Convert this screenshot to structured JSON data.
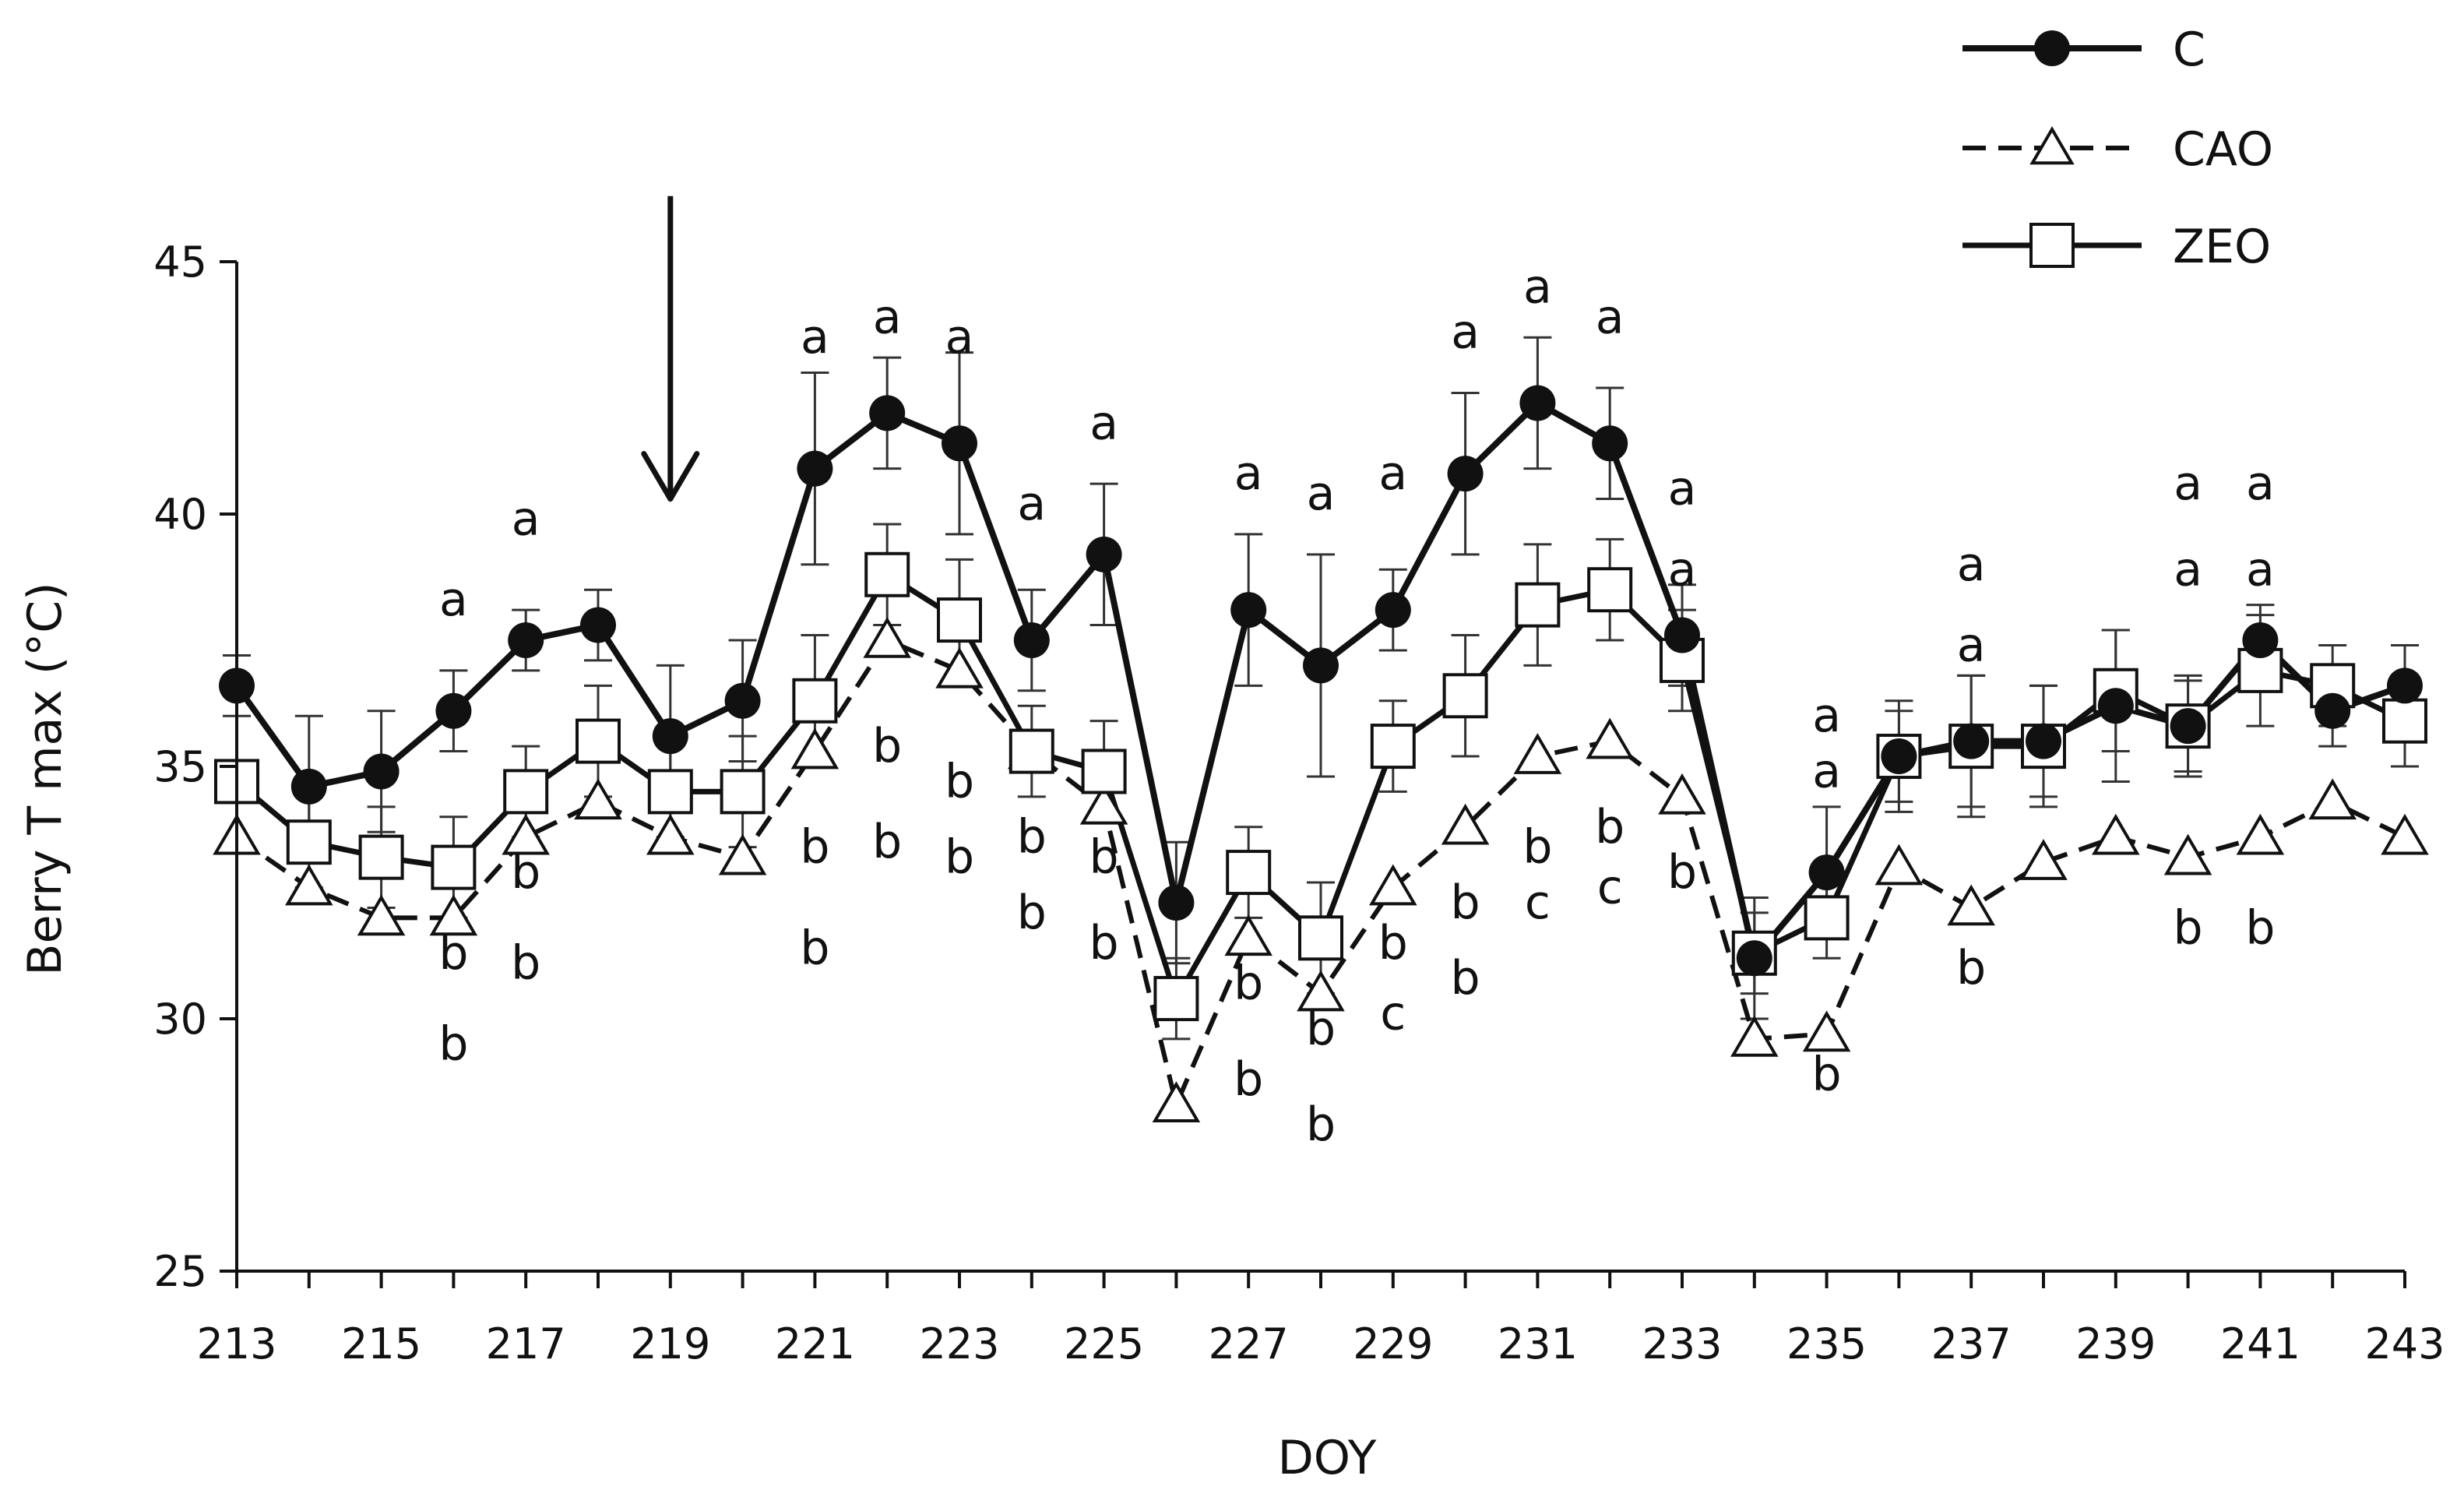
{
  "chart_data": {
    "type": "line",
    "title": "",
    "xlabel": "DOY",
    "ylabel": "Berry T max (°C)",
    "xlim": [
      213,
      243
    ],
    "ylim": [
      25,
      45
    ],
    "xticks": [
      213,
      215,
      217,
      219,
      221,
      223,
      225,
      227,
      229,
      231,
      233,
      235,
      237,
      239,
      241,
      243
    ],
    "yticks": [
      25,
      30,
      35,
      40,
      45
    ],
    "grid": false,
    "legend_position": "top-right",
    "x": [
      213,
      214,
      215,
      216,
      217,
      218,
      219,
      220,
      221,
      222,
      223,
      224,
      225,
      226,
      227,
      228,
      229,
      230,
      231,
      232,
      233,
      234,
      235,
      236,
      237,
      238,
      239,
      240,
      241,
      242,
      243
    ],
    "series": [
      {
        "name": "C",
        "marker": "filled-circle",
        "line": "solid",
        "values": [
          36.6,
          34.6,
          34.9,
          36.1,
          37.5,
          37.8,
          35.6,
          36.3,
          40.9,
          42.0,
          41.4,
          37.5,
          39.2,
          32.3,
          38.1,
          37.0,
          38.1,
          40.8,
          42.2,
          41.4,
          37.6,
          31.2,
          32.9,
          35.2,
          35.5,
          35.5,
          36.2,
          35.8,
          37.5,
          36.1,
          36.6
        ],
        "error": [
          0.6,
          1.4,
          1.2,
          0.8,
          0.6,
          0.7,
          1.4,
          1.2,
          1.9,
          1.1,
          1.8,
          1.0,
          1.4,
          1.2,
          1.5,
          2.2,
          0.8,
          1.6,
          1.3,
          1.1,
          1.0,
          1.2,
          1.3,
          0.9,
          1.3,
          1.1,
          1.5,
          0.9,
          0.7,
          0.7,
          0.8
        ]
      },
      {
        "name": "CAO",
        "marker": "open-triangle",
        "line": "dashed",
        "values": [
          33.6,
          32.6,
          32.0,
          32.0,
          33.6,
          34.3,
          33.6,
          33.2,
          35.3,
          37.5,
          36.9,
          35.3,
          34.2,
          28.3,
          31.6,
          30.5,
          32.6,
          33.8,
          35.2,
          35.5,
          34.4,
          29.6,
          29.7,
          33.0,
          32.2,
          33.1,
          33.6,
          33.2,
          33.6,
          34.3,
          33.6
        ]
      },
      {
        "name": "ZEO",
        "marker": "open-square",
        "line": "solid",
        "values": [
          34.7,
          33.5,
          33.2,
          33.0,
          34.5,
          35.5,
          34.5,
          34.5,
          36.3,
          38.8,
          37.9,
          35.3,
          34.9,
          30.4,
          32.9,
          31.6,
          35.4,
          36.4,
          38.2,
          38.5,
          37.1,
          31.3,
          32.0,
          35.2,
          35.4,
          35.4,
          36.5,
          35.8,
          36.9,
          36.6,
          35.9
        ],
        "error": [
          null,
          0.9,
          1.0,
          1.0,
          0.9,
          1.1,
          0.9,
          1.1,
          1.3,
          1.0,
          1.2,
          0.9,
          1.0,
          0.8,
          0.9,
          1.1,
          0.9,
          1.2,
          1.2,
          1.0,
          1.0,
          0.8,
          0.8,
          1.1,
          1.4,
          1.2,
          1.2,
          1.0,
          1.1,
          0.8,
          0.9
        ]
      }
    ],
    "annotations": {
      "arrow": {
        "x": 219,
        "y_from": 46.3,
        "y_to": 40.3
      },
      "letters": [
        {
          "x": 216,
          "y": 38.3,
          "text": "a"
        },
        {
          "x": 216,
          "y": 31.3,
          "text": "b"
        },
        {
          "x": 216,
          "y": 29.5,
          "text": "b"
        },
        {
          "x": 217,
          "y": 39.9,
          "text": "a"
        },
        {
          "x": 217,
          "y": 32.9,
          "text": "b"
        },
        {
          "x": 217,
          "y": 31.1,
          "text": "b"
        },
        {
          "x": 221,
          "y": 43.5,
          "text": "a"
        },
        {
          "x": 221,
          "y": 33.4,
          "text": "b"
        },
        {
          "x": 221,
          "y": 31.4,
          "text": "b"
        },
        {
          "x": 222,
          "y": 43.9,
          "text": "a"
        },
        {
          "x": 222,
          "y": 35.4,
          "text": "b"
        },
        {
          "x": 222,
          "y": 33.5,
          "text": "b"
        },
        {
          "x": 223,
          "y": 43.5,
          "text": "a"
        },
        {
          "x": 223,
          "y": 34.7,
          "text": "b"
        },
        {
          "x": 223,
          "y": 33.2,
          "text": "b"
        },
        {
          "x": 224,
          "y": 40.2,
          "text": "a"
        },
        {
          "x": 224,
          "y": 33.6,
          "text": "b"
        },
        {
          "x": 224,
          "y": 32.1,
          "text": "b"
        },
        {
          "x": 225,
          "y": 41.8,
          "text": "a"
        },
        {
          "x": 225,
          "y": 33.2,
          "text": "b"
        },
        {
          "x": 225,
          "y": 31.5,
          "text": "b"
        },
        {
          "x": 227,
          "y": 40.8,
          "text": "a"
        },
        {
          "x": 227,
          "y": 30.7,
          "text": "b"
        },
        {
          "x": 227,
          "y": 28.8,
          "text": "b"
        },
        {
          "x": 228,
          "y": 40.4,
          "text": "a"
        },
        {
          "x": 228,
          "y": 29.8,
          "text": "b"
        },
        {
          "x": 228,
          "y": 27.9,
          "text": "b"
        },
        {
          "x": 229,
          "y": 40.8,
          "text": "a"
        },
        {
          "x": 229,
          "y": 31.5,
          "text": "b"
        },
        {
          "x": 229,
          "y": 30.1,
          "text": "c"
        },
        {
          "x": 230,
          "y": 43.6,
          "text": "a"
        },
        {
          "x": 230,
          "y": 32.3,
          "text": "b"
        },
        {
          "x": 230,
          "y": 30.8,
          "text": "b"
        },
        {
          "x": 231,
          "y": 44.5,
          "text": "a"
        },
        {
          "x": 231,
          "y": 33.4,
          "text": "b"
        },
        {
          "x": 231,
          "y": 32.3,
          "text": "c"
        },
        {
          "x": 232,
          "y": 43.9,
          "text": "a"
        },
        {
          "x": 232,
          "y": 33.8,
          "text": "b"
        },
        {
          "x": 232,
          "y": 32.6,
          "text": "c"
        },
        {
          "x": 233,
          "y": 40.5,
          "text": "a"
        },
        {
          "x": 233,
          "y": 38.9,
          "text": "a"
        },
        {
          "x": 233,
          "y": 32.9,
          "text": "b"
        },
        {
          "x": 235,
          "y": 36.0,
          "text": "a"
        },
        {
          "x": 235,
          "y": 34.9,
          "text": "a"
        },
        {
          "x": 235,
          "y": 28.9,
          "text": "b"
        },
        {
          "x": 237,
          "y": 39.0,
          "text": "a"
        },
        {
          "x": 237,
          "y": 37.4,
          "text": "a"
        },
        {
          "x": 237,
          "y": 31.0,
          "text": "b"
        },
        {
          "x": 240,
          "y": 40.6,
          "text": "a"
        },
        {
          "x": 240,
          "y": 38.9,
          "text": "a"
        },
        {
          "x": 240,
          "y": 31.8,
          "text": "b"
        },
        {
          "x": 241,
          "y": 40.6,
          "text": "a"
        },
        {
          "x": 241,
          "y": 38.9,
          "text": "a"
        },
        {
          "x": 241,
          "y": 31.8,
          "text": "b"
        }
      ]
    }
  }
}
